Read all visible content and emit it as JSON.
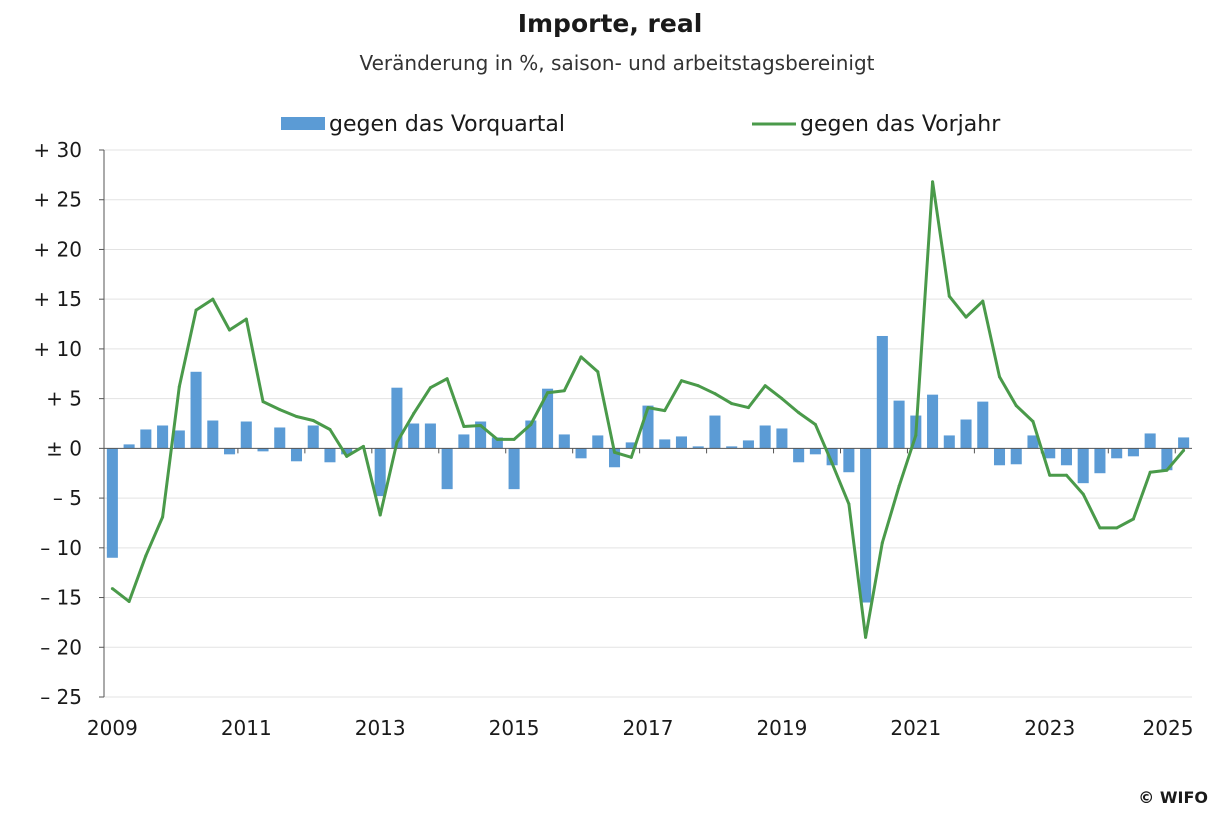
{
  "chart_data": {
    "type": "bar",
    "title": "Importe, real",
    "subtitle": "Veränderung in %, saison- und arbeitstagsbereinigt",
    "xlabel": "",
    "ylabel": "",
    "ylim": [
      -25,
      30
    ],
    "y_ticks": [
      30,
      25,
      20,
      15,
      10,
      5,
      0,
      -5,
      -10,
      -15,
      -20,
      -25
    ],
    "y_tick_labels": [
      "+ 30",
      "+ 25",
      "+ 20",
      "+ 15",
      "+ 10",
      "+ 5",
      "± 0",
      "– 5",
      "– 10",
      "– 15",
      "– 20",
      "– 25"
    ],
    "x_tick_labels": [
      "2009",
      "2011",
      "2013",
      "2015",
      "2017",
      "2019",
      "2021",
      "2023",
      "2025"
    ],
    "x_start_year": 2009,
    "grid": true,
    "legend_position": "top-center",
    "series": [
      {
        "name": "gegen das Vorquartal",
        "type": "bar",
        "color": "#5b9bd5",
        "values": [
          -11.0,
          0.4,
          1.9,
          2.3,
          1.8,
          7.7,
          2.8,
          -0.6,
          2.7,
          -0.3,
          2.1,
          -1.3,
          2.3,
          -1.4,
          -0.6,
          0.0,
          -4.8,
          6.1,
          2.5,
          2.5,
          -4.1,
          1.4,
          2.7,
          1.1,
          -4.1,
          2.8,
          6.0,
          1.4,
          -1.0,
          1.3,
          -1.9,
          0.6,
          4.3,
          0.9,
          1.2,
          0.2,
          3.3,
          0.2,
          0.8,
          2.3,
          2.0,
          -1.4,
          -0.6,
          -1.7,
          -2.4,
          -15.5,
          11.3,
          4.8,
          3.3,
          5.4,
          1.3,
          2.9,
          4.7,
          -1.7,
          -1.6,
          1.3,
          -1.0,
          -1.7,
          -3.5,
          -2.5,
          -1.0,
          -0.8,
          1.5,
          -2.2,
          1.1
        ]
      },
      {
        "name": "gegen das Vorjahr",
        "type": "line",
        "color": "#4a9a4a",
        "values": [
          -14.1,
          -15.4,
          -10.8,
          -6.9,
          6.2,
          13.9,
          15.0,
          11.9,
          13.0,
          4.7,
          3.9,
          3.2,
          2.8,
          1.9,
          -0.8,
          0.2,
          -6.7,
          0.6,
          3.5,
          6.1,
          7.0,
          2.2,
          2.3,
          0.9,
          0.9,
          2.4,
          5.6,
          5.8,
          9.2,
          7.7,
          -0.4,
          -0.9,
          4.1,
          3.8,
          6.8,
          6.3,
          5.5,
          4.5,
          4.1,
          6.3,
          5.0,
          3.6,
          2.4,
          -1.5,
          -5.6,
          -19.0,
          -9.5,
          -3.8,
          1.3,
          26.8,
          15.3,
          13.2,
          14.8,
          7.2,
          4.3,
          2.7,
          -2.7,
          -2.7,
          -4.6,
          -8.0,
          -8.0,
          -7.1,
          -2.4,
          -2.2,
          -0.2
        ]
      }
    ]
  },
  "copyright": "© WIFO"
}
